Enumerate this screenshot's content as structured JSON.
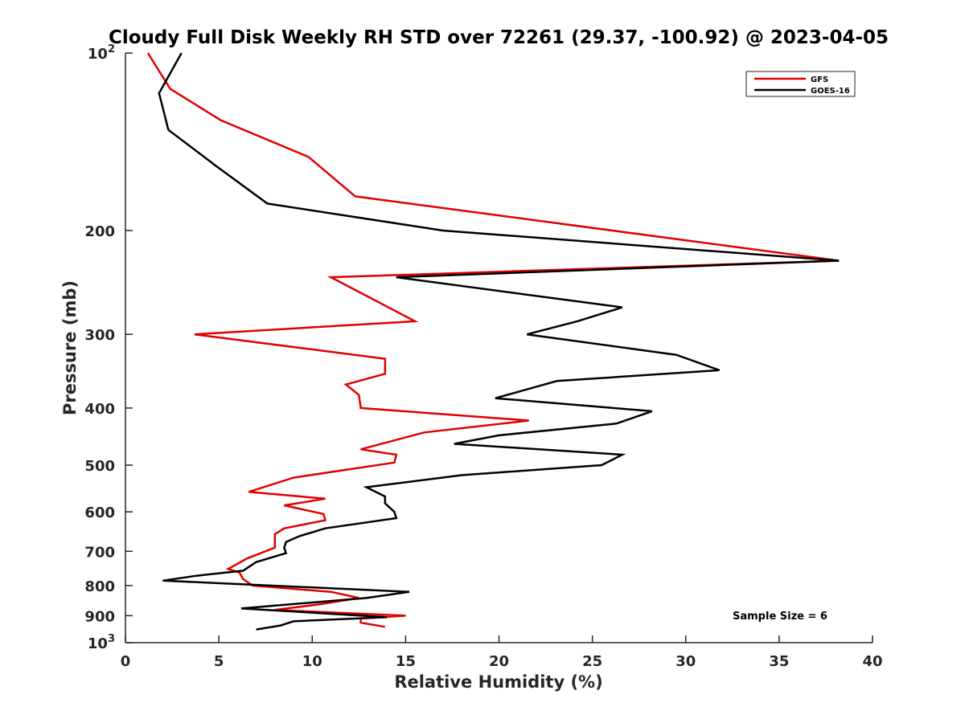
{
  "chart_data": {
    "type": "line",
    "title": "Cloudy Full Disk Weekly RH STD over 72261 (29.37, -100.92) @ 2023-04-05",
    "xlabel": "Relative Humidity (%)",
    "ylabel": "Pressure (mb)",
    "xlim": [
      0,
      40
    ],
    "ylim": [
      100,
      1000
    ],
    "y_scale": "log",
    "y_reversed": true,
    "grid": false,
    "legend_position": "top-right",
    "x_ticks": [
      "0",
      "5",
      "10",
      "15",
      "20",
      "25",
      "30",
      "35",
      "40"
    ],
    "y_ticks": [
      {
        "value": 100,
        "base": "10",
        "exp": "2"
      },
      {
        "value": 200,
        "label": "200"
      },
      {
        "value": 300,
        "label": "300"
      },
      {
        "value": 400,
        "label": "400"
      },
      {
        "value": 500,
        "label": "500"
      },
      {
        "value": 600,
        "label": "600"
      },
      {
        "value": 700,
        "label": "700"
      },
      {
        "value": 800,
        "label": "800"
      },
      {
        "value": 900,
        "label": "900"
      },
      {
        "value": 1000,
        "base": "10",
        "exp": "3"
      }
    ],
    "series": [
      {
        "name": "GFS",
        "color": "#e00000",
        "points": [
          [
            1.2,
            100
          ],
          [
            2.4,
            115
          ],
          [
            5.1,
            130
          ],
          [
            9.8,
            150
          ],
          [
            12.3,
            175
          ],
          [
            38.2,
            225
          ],
          [
            11.0,
            240
          ],
          [
            15.5,
            285
          ],
          [
            3.7,
            300
          ],
          [
            13.9,
            330
          ],
          [
            13.9,
            350
          ],
          [
            11.8,
            365
          ],
          [
            12.5,
            380
          ],
          [
            12.6,
            400
          ],
          [
            21.6,
            420
          ],
          [
            16.0,
            440
          ],
          [
            12.6,
            470
          ],
          [
            14.5,
            480
          ],
          [
            14.4,
            495
          ],
          [
            9.0,
            525
          ],
          [
            6.6,
            555
          ],
          [
            10.7,
            570
          ],
          [
            8.5,
            585
          ],
          [
            10.6,
            605
          ],
          [
            10.7,
            620
          ],
          [
            8.5,
            640
          ],
          [
            8.0,
            655
          ],
          [
            8.0,
            690
          ],
          [
            6.5,
            720
          ],
          [
            5.5,
            750
          ],
          [
            6.1,
            760
          ],
          [
            6.3,
            780
          ],
          [
            6.8,
            800
          ],
          [
            11.0,
            820
          ],
          [
            12.5,
            840
          ],
          [
            10.5,
            860
          ],
          [
            8.0,
            880
          ],
          [
            15.0,
            900
          ],
          [
            12.6,
            910
          ],
          [
            12.6,
            925
          ],
          [
            13.9,
            940
          ]
        ]
      },
      {
        "name": "GOES-16",
        "color": "#000000",
        "points": [
          [
            3.0,
            100
          ],
          [
            1.8,
            117
          ],
          [
            2.3,
            135
          ],
          [
            4.8,
            155
          ],
          [
            7.6,
            180
          ],
          [
            17.0,
            200
          ],
          [
            38.2,
            225
          ],
          [
            14.5,
            240
          ],
          [
            26.6,
            270
          ],
          [
            24.2,
            285
          ],
          [
            21.5,
            300
          ],
          [
            29.5,
            325
          ],
          [
            31.8,
            345
          ],
          [
            23.1,
            360
          ],
          [
            19.8,
            385
          ],
          [
            28.2,
            405
          ],
          [
            26.3,
            425
          ],
          [
            20.0,
            445
          ],
          [
            17.6,
            460
          ],
          [
            26.6,
            480
          ],
          [
            25.5,
            500
          ],
          [
            18.0,
            520
          ],
          [
            12.9,
            545
          ],
          [
            13.9,
            565
          ],
          [
            13.9,
            580
          ],
          [
            14.4,
            600
          ],
          [
            14.5,
            615
          ],
          [
            10.7,
            640
          ],
          [
            9.3,
            660
          ],
          [
            8.6,
            675
          ],
          [
            8.5,
            690
          ],
          [
            8.6,
            705
          ],
          [
            7.0,
            730
          ],
          [
            6.3,
            755
          ],
          [
            3.8,
            770
          ],
          [
            2.0,
            785
          ],
          [
            15.2,
            820
          ],
          [
            12.9,
            840
          ],
          [
            6.2,
            875
          ],
          [
            14.0,
            905
          ],
          [
            9.0,
            920
          ],
          [
            8.3,
            935
          ],
          [
            7.0,
            950
          ]
        ]
      }
    ],
    "annotation": "Sample Size = 6"
  }
}
